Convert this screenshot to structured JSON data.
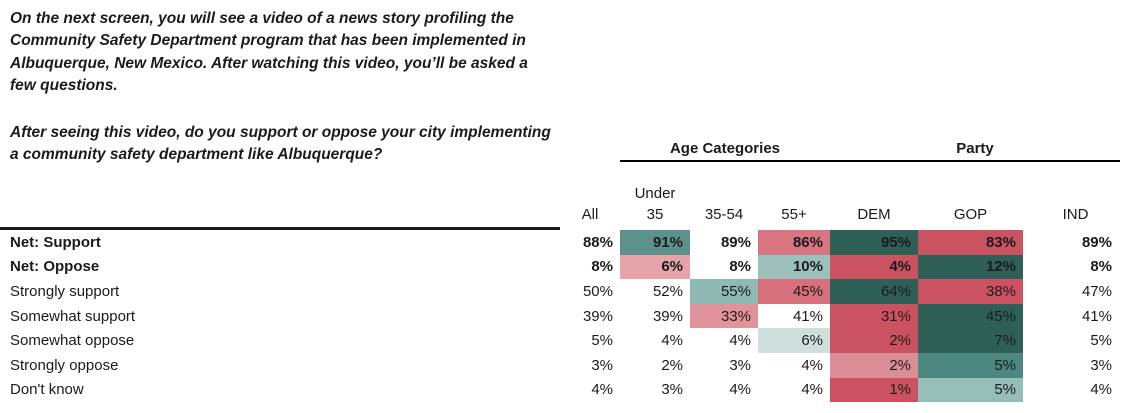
{
  "question": {
    "intro": "On the next screen, you will see a video of a news story profiling the\nCommunity Safety Department program that has been implemented in\nAlbuquerque, New Mexico. After watching this video, you’ll be asked a\nfew questions.",
    "prompt": "After seeing this video, do you support or oppose your city implementing\na community safety department like Albuquerque?"
  },
  "table": {
    "group_headers": [
      {
        "label": "Age Categories",
        "covers": [
          "under-35",
          "35-54",
          "55-plus"
        ]
      },
      {
        "label": "Party",
        "covers": [
          "dem",
          "gop",
          "ind"
        ]
      }
    ],
    "columns": [
      {
        "id": "all",
        "label": "All"
      },
      {
        "id": "under-35",
        "label": "Under\n35"
      },
      {
        "id": "35-54",
        "label": "35-54"
      },
      {
        "id": "55-plus",
        "label": "55+"
      },
      {
        "id": "dem",
        "label": "DEM"
      },
      {
        "id": "gop",
        "label": "GOP"
      },
      {
        "id": "ind",
        "label": "IND"
      }
    ],
    "rows": [
      {
        "label": "Net: Support",
        "bold": true,
        "values": [
          "88%",
          "91%",
          "89%",
          "86%",
          "95%",
          "83%",
          "89%"
        ],
        "fills": [
          "none",
          "tealMed",
          "none",
          "salmon",
          "tealDark",
          "red",
          "none"
        ]
      },
      {
        "label": "Net: Oppose",
        "bold": true,
        "values": [
          "8%",
          "6%",
          "8%",
          "10%",
          "4%",
          "12%",
          "8%"
        ],
        "fills": [
          "none",
          "pink",
          "none",
          "tealLight",
          "red",
          "tealDark",
          "none"
        ]
      },
      {
        "label": "Strongly support",
        "bold": false,
        "values": [
          "50%",
          "52%",
          "55%",
          "45%",
          "64%",
          "38%",
          "47%"
        ],
        "fills": [
          "none",
          "none",
          "tealLight2",
          "salmon2",
          "tealDark",
          "red",
          "none"
        ]
      },
      {
        "label": "Somewhat support",
        "bold": false,
        "values": [
          "39%",
          "39%",
          "33%",
          "41%",
          "31%",
          "45%",
          "41%"
        ],
        "fills": [
          "none",
          "none",
          "pink2",
          "none",
          "red",
          "tealDark",
          "none"
        ]
      },
      {
        "label": "Somewhat oppose",
        "bold": false,
        "values": [
          "5%",
          "4%",
          "4%",
          "6%",
          "2%",
          "7%",
          "5%"
        ],
        "fills": [
          "none",
          "none",
          "none",
          "tealPale",
          "red",
          "tealDark",
          "none"
        ]
      },
      {
        "label": "Strongly oppose",
        "bold": false,
        "values": [
          "3%",
          "2%",
          "3%",
          "4%",
          "2%",
          "5%",
          "3%"
        ],
        "fills": [
          "none",
          "none",
          "none",
          "none",
          "salmonLight",
          "tealMed2",
          "none"
        ]
      },
      {
        "label": "Don't know",
        "bold": false,
        "values": [
          "4%",
          "3%",
          "4%",
          "4%",
          "1%",
          "5%",
          "4%"
        ],
        "fills": [
          "none",
          "none",
          "none",
          "none",
          "red",
          "tealLight3",
          "none"
        ]
      }
    ],
    "palette": {
      "tealDark": "#2F6058",
      "tealMed": "#5D928C",
      "tealMed2": "#4C8780",
      "tealLight": "#9CC1BA",
      "tealLight2": "#8EBAB3",
      "tealLight3": "#94BEB7",
      "tealPale": "#CFE0DC",
      "red": "#CB5361",
      "salmon": "#D97580",
      "salmon2": "#D7707B",
      "salmonLight": "#DC8E96",
      "pink": "#E7A3AA",
      "pink2": "#E2929A"
    }
  },
  "chart_data": {
    "type": "heatmap",
    "title": "After seeing this video, do you support or oppose your city implementing a community safety department like Albuquerque?",
    "rows": [
      "Net: Support",
      "Net: Oppose",
      "Strongly support",
      "Somewhat support",
      "Somewhat oppose",
      "Strongly oppose",
      "Don't know"
    ],
    "columns": [
      "All",
      "Under 35",
      "35-54",
      "55+",
      "DEM",
      "GOP",
      "IND"
    ],
    "column_groups": [
      {
        "label": "Age Categories",
        "columns": [
          "Under 35",
          "35-54",
          "55+"
        ]
      },
      {
        "label": "Party",
        "columns": [
          "DEM",
          "GOP",
          "IND"
        ]
      }
    ],
    "values_pct": [
      [
        88,
        91,
        89,
        86,
        95,
        83,
        89
      ],
      [
        8,
        6,
        8,
        10,
        4,
        12,
        8
      ],
      [
        50,
        52,
        55,
        45,
        64,
        38,
        47
      ],
      [
        39,
        39,
        33,
        41,
        31,
        45,
        41
      ],
      [
        5,
        4,
        4,
        6,
        2,
        7,
        5
      ],
      [
        3,
        2,
        3,
        4,
        2,
        5,
        3
      ],
      [
        4,
        3,
        4,
        4,
        1,
        5,
        4
      ]
    ],
    "shading": "teal cells = higher than average, red/pink cells = lower than average; All and IND columns unshaded"
  }
}
